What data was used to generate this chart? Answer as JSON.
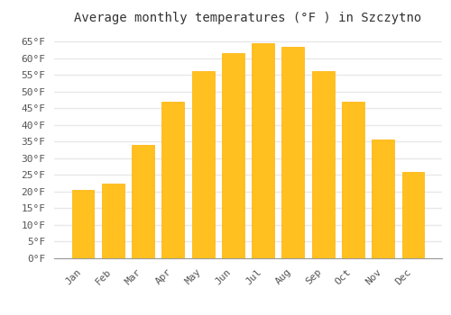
{
  "months": [
    "Jan",
    "Feb",
    "Mar",
    "Apr",
    "May",
    "Jun",
    "Jul",
    "Aug",
    "Sep",
    "Oct",
    "Nov",
    "Dec"
  ],
  "values": [
    20.5,
    22.5,
    34.0,
    47.0,
    56.0,
    61.5,
    64.5,
    63.5,
    56.0,
    47.0,
    35.5,
    26.0
  ],
  "bar_color": "#FFC020",
  "bar_edge_color": "#FFB000",
  "title": "Average monthly temperatures (°F ) in Szczytno",
  "ylim": [
    0,
    68
  ],
  "yticks": [
    0,
    5,
    10,
    15,
    20,
    25,
    30,
    35,
    40,
    45,
    50,
    55,
    60,
    65
  ],
  "ytick_labels": [
    "0°F",
    "5°F",
    "10°F",
    "15°F",
    "20°F",
    "25°F",
    "30°F",
    "35°F",
    "40°F",
    "45°F",
    "50°F",
    "55°F",
    "60°F",
    "65°F"
  ],
  "background_color": "#FFFFFF",
  "grid_color": "#E8E8E8",
  "title_fontsize": 10,
  "tick_fontsize": 8,
  "font_family": "monospace",
  "bar_width": 0.75
}
